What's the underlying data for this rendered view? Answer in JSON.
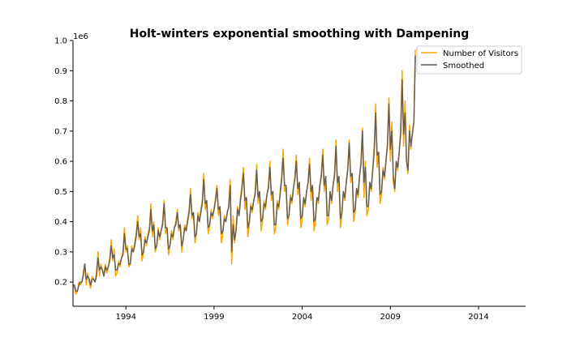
{
  "chart_data": {
    "type": "line",
    "title": "Holt-winters exponential smoothing with Dampening",
    "xlabel": "",
    "ylabel": "",
    "y_offset_label": "1e6",
    "x_tick_labels": [
      "1994",
      "1999",
      "2004",
      "2009",
      "2014"
    ],
    "x_tick_years": [
      1994,
      1999,
      2004,
      2009,
      2014
    ],
    "y_tick_labels": [
      "0.2",
      "0.3",
      "0.4",
      "0.5",
      "0.6",
      "0.7",
      "0.8",
      "0.9",
      "1.0"
    ],
    "y_tick_values": [
      0.2,
      0.3,
      0.4,
      0.5,
      0.6,
      0.7,
      0.8,
      0.9,
      1.0
    ],
    "xlim": [
      1991.0,
      2016.67
    ],
    "ylim": [
      0.12,
      1.0
    ],
    "y_units": "millions (1e6)",
    "legend_position": "top-right",
    "grid": false,
    "series": [
      {
        "name": "Number of Visitors",
        "color": "#FFA500",
        "x_start": 1991.0,
        "x_step": 0.0833333,
        "values": [
          0.19,
          0.18,
          0.16,
          0.17,
          0.2,
          0.19,
          0.2,
          0.23,
          0.26,
          0.19,
          0.23,
          0.2,
          0.18,
          0.22,
          0.21,
          0.2,
          0.23,
          0.3,
          0.22,
          0.26,
          0.24,
          0.22,
          0.26,
          0.23,
          0.25,
          0.28,
          0.34,
          0.27,
          0.31,
          0.22,
          0.23,
          0.27,
          0.25,
          0.28,
          0.3,
          0.38,
          0.3,
          0.32,
          0.25,
          0.26,
          0.32,
          0.3,
          0.33,
          0.36,
          0.42,
          0.34,
          0.38,
          0.27,
          0.3,
          0.35,
          0.32,
          0.36,
          0.38,
          0.46,
          0.35,
          0.4,
          0.3,
          0.32,
          0.38,
          0.34,
          0.37,
          0.4,
          0.47,
          0.36,
          0.38,
          0.29,
          0.32,
          0.37,
          0.34,
          0.38,
          0.4,
          0.44,
          0.37,
          0.39,
          0.3,
          0.34,
          0.39,
          0.37,
          0.41,
          0.44,
          0.51,
          0.41,
          0.43,
          0.33,
          0.36,
          0.43,
          0.4,
          0.44,
          0.47,
          0.56,
          0.44,
          0.47,
          0.36,
          0.38,
          0.44,
          0.41,
          0.44,
          0.48,
          0.52,
          0.42,
          0.45,
          0.33,
          0.36,
          0.42,
          0.4,
          0.43,
          0.45,
          0.54,
          0.26,
          0.42,
          0.33,
          0.38,
          0.45,
          0.42,
          0.48,
          0.52,
          0.58,
          0.44,
          0.48,
          0.35,
          0.39,
          0.46,
          0.43,
          0.47,
          0.5,
          0.59,
          0.46,
          0.5,
          0.37,
          0.4,
          0.47,
          0.44,
          0.49,
          0.52,
          0.6,
          0.47,
          0.5,
          0.36,
          0.38,
          0.47,
          0.44,
          0.5,
          0.55,
          0.64,
          0.5,
          0.52,
          0.39,
          0.42,
          0.49,
          0.46,
          0.51,
          0.55,
          0.62,
          0.49,
          0.53,
          0.38,
          0.41,
          0.48,
          0.45,
          0.5,
          0.53,
          0.61,
          0.47,
          0.52,
          0.37,
          0.4,
          0.48,
          0.46,
          0.52,
          0.56,
          0.64,
          0.5,
          0.55,
          0.39,
          0.41,
          0.5,
          0.46,
          0.52,
          0.56,
          0.67,
          0.5,
          0.55,
          0.38,
          0.42,
          0.5,
          0.47,
          0.53,
          0.58,
          0.67,
          0.53,
          0.56,
          0.4,
          0.43,
          0.51,
          0.48,
          0.55,
          0.6,
          0.71,
          0.48,
          0.6,
          0.42,
          0.44,
          0.53,
          0.5,
          0.58,
          0.65,
          0.79,
          0.58,
          0.63,
          0.46,
          0.49,
          0.58,
          0.54,
          0.6,
          0.66,
          0.81,
          0.6,
          0.73,
          0.53,
          0.5,
          0.6,
          0.57,
          0.63,
          0.7,
          0.9,
          0.65,
          0.8,
          0.6,
          0.56,
          0.72,
          0.64,
          0.7,
          0.73,
          0.97
        ]
      },
      {
        "name": "Smoothed",
        "color": "#555555",
        "x_start": 1991.0,
        "x_step": 0.0833333,
        "values": [
          0.19,
          0.19,
          0.17,
          0.17,
          0.19,
          0.2,
          0.2,
          0.22,
          0.26,
          0.21,
          0.22,
          0.21,
          0.19,
          0.21,
          0.21,
          0.2,
          0.22,
          0.28,
          0.24,
          0.25,
          0.24,
          0.22,
          0.25,
          0.24,
          0.25,
          0.27,
          0.32,
          0.28,
          0.29,
          0.24,
          0.24,
          0.26,
          0.26,
          0.28,
          0.29,
          0.36,
          0.31,
          0.31,
          0.26,
          0.26,
          0.31,
          0.3,
          0.32,
          0.35,
          0.4,
          0.35,
          0.36,
          0.29,
          0.3,
          0.34,
          0.33,
          0.35,
          0.37,
          0.44,
          0.37,
          0.39,
          0.31,
          0.32,
          0.37,
          0.35,
          0.37,
          0.39,
          0.46,
          0.38,
          0.38,
          0.31,
          0.32,
          0.36,
          0.35,
          0.38,
          0.39,
          0.43,
          0.38,
          0.39,
          0.32,
          0.34,
          0.38,
          0.37,
          0.4,
          0.43,
          0.49,
          0.42,
          0.43,
          0.35,
          0.36,
          0.42,
          0.4,
          0.43,
          0.46,
          0.54,
          0.46,
          0.47,
          0.38,
          0.39,
          0.43,
          0.42,
          0.44,
          0.47,
          0.51,
          0.44,
          0.45,
          0.36,
          0.37,
          0.41,
          0.4,
          0.43,
          0.45,
          0.52,
          0.3,
          0.39,
          0.34,
          0.37,
          0.44,
          0.42,
          0.47,
          0.51,
          0.56,
          0.47,
          0.48,
          0.38,
          0.4,
          0.45,
          0.44,
          0.47,
          0.49,
          0.57,
          0.48,
          0.5,
          0.4,
          0.41,
          0.46,
          0.45,
          0.49,
          0.51,
          0.58,
          0.49,
          0.5,
          0.39,
          0.39,
          0.46,
          0.45,
          0.49,
          0.54,
          0.61,
          0.52,
          0.52,
          0.41,
          0.42,
          0.48,
          0.47,
          0.51,
          0.54,
          0.6,
          0.51,
          0.53,
          0.41,
          0.42,
          0.48,
          0.46,
          0.5,
          0.53,
          0.59,
          0.5,
          0.52,
          0.4,
          0.41,
          0.48,
          0.47,
          0.52,
          0.55,
          0.62,
          0.52,
          0.55,
          0.42,
          0.42,
          0.5,
          0.47,
          0.52,
          0.55,
          0.65,
          0.53,
          0.55,
          0.41,
          0.43,
          0.5,
          0.48,
          0.53,
          0.57,
          0.66,
          0.55,
          0.56,
          0.43,
          0.44,
          0.51,
          0.49,
          0.55,
          0.59,
          0.7,
          0.53,
          0.58,
          0.45,
          0.45,
          0.53,
          0.51,
          0.57,
          0.63,
          0.76,
          0.62,
          0.63,
          0.49,
          0.5,
          0.57,
          0.55,
          0.6,
          0.65,
          0.79,
          0.64,
          0.7,
          0.55,
          0.51,
          0.6,
          0.58,
          0.63,
          0.69,
          0.87,
          0.69,
          0.76,
          0.6,
          0.57,
          0.7,
          0.65,
          0.69,
          0.73,
          0.95
        ]
      }
    ]
  }
}
